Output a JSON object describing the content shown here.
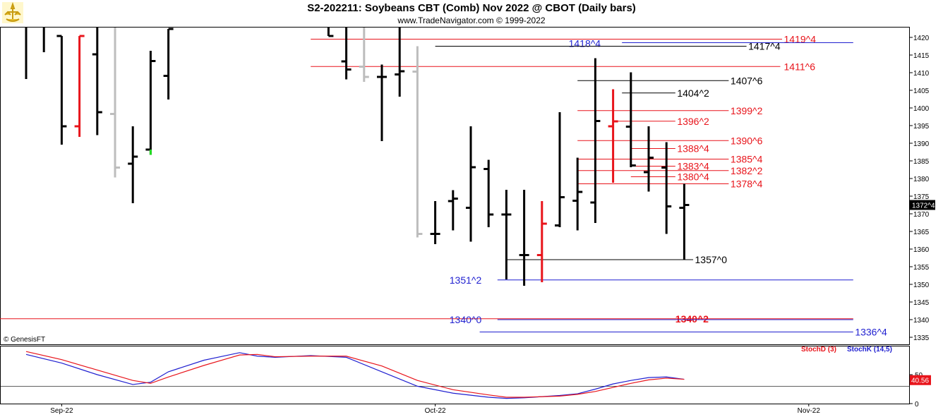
{
  "header": {
    "title": "S2-202211:  Soybeans CBT (Comb) Nov 2022 @ CBOT  (Daily bars)",
    "subtitle": "www.TradeNavigator.com © 1999-2022"
  },
  "copyright": "© GenesisFT",
  "colors": {
    "up": "#000000",
    "down_red": "#e8141b",
    "gray": "#bdbdbd",
    "blue": "#1f1fd0",
    "green": "#22dd22"
  },
  "chart_data": [
    {
      "type": "ohlc",
      "ylim": [
        1333,
        1423
      ],
      "yticks": [
        1335,
        1340,
        1345,
        1350,
        1355,
        1360,
        1365,
        1370,
        1375,
        1380,
        1385,
        1390,
        1395,
        1400,
        1405,
        1410,
        1415,
        1420
      ],
      "x_labels": [
        {
          "label": "Sep-22",
          "x": 2
        },
        {
          "label": "Oct-22",
          "x": 23
        },
        {
          "label": "Nov-22",
          "x": 44
        }
      ],
      "last_price": "1372^4",
      "bars": [
        {
          "x": 0,
          "o": 1423,
          "h": 1423,
          "l": 1408.2,
          "c": 1423,
          "color": "black"
        },
        {
          "x": 1,
          "o": 1423,
          "h": 1423,
          "l": 1415.8,
          "c": 1423,
          "color": "black"
        },
        {
          "x": 2,
          "o": 1420.4,
          "h": 1420.4,
          "l": 1389.6,
          "c": 1394.8,
          "color": "black"
        },
        {
          "x": 3,
          "o": 1394.8,
          "h": 1420.4,
          "l": 1391.8,
          "c": 1420.4,
          "color": "red"
        },
        {
          "x": 4,
          "o": 1415.2,
          "h": 1423,
          "l": 1392.3,
          "c": 1398.8,
          "color": "black"
        },
        {
          "x": 5,
          "o": 1398.3,
          "h": 1423,
          "l": 1380.3,
          "c": 1383.1,
          "color": "gray"
        },
        {
          "x": 6,
          "o": 1384.2,
          "h": 1394.8,
          "l": 1373,
          "c": 1386.2,
          "color": "black"
        },
        {
          "x": 7,
          "o": 1388.2,
          "h": 1416.2,
          "l": 1386.7,
          "c": 1413.3,
          "color": "black"
        },
        {
          "x": 8,
          "o": 1409.1,
          "h": 1422.4,
          "l": 1402.4,
          "c": 1422.4,
          "color": "black"
        },
        {
          "x": 17,
          "o": 1423,
          "h": 1423,
          "l": 1420.4,
          "c": 1420.4,
          "color": "black"
        },
        {
          "x": 18,
          "o": 1413.2,
          "h": 1423,
          "l": 1408.1,
          "c": 1410.9,
          "color": "black"
        },
        {
          "x": 19,
          "o": 1411.7,
          "h": 1423,
          "l": 1407.4,
          "c": 1408.8,
          "color": "gray"
        },
        {
          "x": 20,
          "o": 1408.8,
          "h": 1412.3,
          "l": 1390.6,
          "c": 1408.8,
          "color": "black"
        },
        {
          "x": 21,
          "o": 1409.5,
          "h": 1423,
          "l": 1403.2,
          "c": 1410.4,
          "color": "black"
        },
        {
          "x": 22,
          "o": 1410.3,
          "h": 1417.5,
          "l": 1363.3,
          "c": 1364.3,
          "color": "gray"
        },
        {
          "x": 23,
          "o": 1364.3,
          "h": 1373.6,
          "l": 1361.4,
          "c": 1364.3,
          "color": "black"
        },
        {
          "x": 24,
          "o": 1373.6,
          "h": 1376.7,
          "l": 1365.3,
          "c": 1374.3,
          "color": "black"
        },
        {
          "x": 25,
          "o": 1371.7,
          "h": 1394.8,
          "l": 1362.1,
          "c": 1383.2,
          "color": "black"
        },
        {
          "x": 26,
          "o": 1382.7,
          "h": 1385.3,
          "l": 1366.2,
          "c": 1369.8,
          "color": "black"
        },
        {
          "x": 27,
          "o": 1369.8,
          "h": 1376.8,
          "l": 1351.4,
          "c": 1369.8,
          "color": "black"
        },
        {
          "x": 28,
          "o": 1358.3,
          "h": 1376.8,
          "l": 1349.6,
          "c": 1358.3,
          "color": "black"
        },
        {
          "x": 29,
          "o": 1358.3,
          "h": 1373.6,
          "l": 1350.6,
          "c": 1367.2,
          "color": "red"
        },
        {
          "x": 30,
          "o": 1366.7,
          "h": 1398.8,
          "l": 1366.2,
          "c": 1374.7,
          "color": "black"
        },
        {
          "x": 31,
          "o": 1373.7,
          "h": 1385.9,
          "l": 1365.3,
          "c": 1376.2,
          "color": "black"
        },
        {
          "x": 32,
          "o": 1373.2,
          "h": 1414.1,
          "l": 1367.4,
          "c": 1396.3,
          "color": "black"
        },
        {
          "x": 33,
          "o": 1394.8,
          "h": 1405.3,
          "l": 1378.8,
          "c": 1396.2,
          "color": "red"
        },
        {
          "x": 34,
          "o": 1394.7,
          "h": 1410.1,
          "l": 1383.2,
          "c": 1383.7,
          "color": "black"
        },
        {
          "x": 35,
          "o": 1381.8,
          "h": 1394.8,
          "l": 1376.3,
          "c": 1385.9,
          "color": "black"
        },
        {
          "x": 36,
          "o": 1383.1,
          "h": 1390.3,
          "l": 1364.3,
          "c": 1372.1,
          "color": "black"
        },
        {
          "x": 37,
          "o": 1371.7,
          "h": 1378.5,
          "l": 1357.1,
          "c": 1372.5,
          "color": "black"
        }
      ],
      "levels": [
        {
          "label": "1419^4",
          "price": 1419.5,
          "x_from": 16,
          "x_to": 42.5,
          "color": "red",
          "label_x": 42.6,
          "label_dy": 0
        },
        {
          "label": "1418^4",
          "price": 1418.5,
          "x_from": 33.5,
          "x_to": 46.5,
          "color": "blue",
          "label_x": 30.5,
          "label_dy": 1
        },
        {
          "label": "1417^4",
          "price": 1417.5,
          "x_from": 23,
          "x_to": 40.5,
          "color": "black",
          "label_x": 40.6,
          "label_dy": 0
        },
        {
          "label": "1411^6",
          "price": 1411.75,
          "x_from": 16,
          "x_to": 42.4,
          "color": "red",
          "label_x": 42.6,
          "label_dy": 0
        },
        {
          "label": "1407^6",
          "price": 1407.75,
          "x_from": 31,
          "x_to": 39.5,
          "color": "black",
          "label_x": 39.6,
          "label_dy": 0
        },
        {
          "label": "1404^2",
          "price": 1404.25,
          "x_from": 33.5,
          "x_to": 36.5,
          "color": "black",
          "label_x": 36.6,
          "label_dy": 0
        },
        {
          "label": "1399^2",
          "price": 1399.25,
          "x_from": 31,
          "x_to": 39.5,
          "color": "red",
          "label_x": 39.6,
          "label_dy": 0
        },
        {
          "label": "1396^2",
          "price": 1396.25,
          "x_from": 33,
          "x_to": 36.5,
          "color": "red",
          "label_x": 36.6,
          "label_dy": 0
        },
        {
          "label": "1390^6",
          "price": 1390.75,
          "x_from": 31,
          "x_to": 39.5,
          "color": "red",
          "label_x": 39.6,
          "label_dy": 0
        },
        {
          "label": "1388^4",
          "price": 1388.5,
          "x_from": 34,
          "x_to": 36.5,
          "color": "red",
          "label_x": 36.6,
          "label_dy": 0
        },
        {
          "label": "1385^4",
          "price": 1385.5,
          "x_from": 31,
          "x_to": 39.5,
          "color": "red",
          "label_x": 39.6,
          "label_dy": 0
        },
        {
          "label": "1383^4",
          "price": 1383.5,
          "x_from": 34,
          "x_to": 36.5,
          "color": "red",
          "label_x": 36.6,
          "label_dy": 0
        },
        {
          "label": "1382^2",
          "price": 1382.25,
          "x_from": 31,
          "x_to": 39.5,
          "color": "red",
          "label_x": 39.6,
          "label_dy": 0
        },
        {
          "label": "1380^4",
          "price": 1380.5,
          "x_from": 34,
          "x_to": 36.5,
          "color": "red",
          "label_x": 36.6,
          "label_dy": 0
        },
        {
          "label": "1378^4",
          "price": 1378.5,
          "x_from": 31,
          "x_to": 39.5,
          "color": "red",
          "label_x": 39.6,
          "label_dy": 0
        },
        {
          "label": "1357^0",
          "price": 1357.0,
          "x_from": 27,
          "x_to": 37.5,
          "color": "black",
          "label_x": 37.6,
          "label_dy": 0
        },
        {
          "label": "1351^2",
          "price": 1351.25,
          "x_from": 26.5,
          "x_to": 46.5,
          "color": "blue",
          "label_x": 23.8,
          "label_dy": 0
        },
        {
          "label": "1340^2",
          "price": 1340.25,
          "x_from": -1.5,
          "x_to": 46.5,
          "color": "red",
          "label_x": 36.5,
          "label_dy": 0,
          "bold": true
        },
        {
          "label": "1340^0",
          "price": 1340.0,
          "x_from": 26.5,
          "x_to": 46.5,
          "color": "blue",
          "label_x": 23.8,
          "label_dy": 0
        },
        {
          "label": "1336^4",
          "price": 1336.5,
          "x_from": 25.5,
          "x_to": 46.5,
          "color": "blue",
          "label_x": 46.6,
          "label_dy": 0
        }
      ]
    },
    {
      "type": "line",
      "ylim": [
        0,
        100
      ],
      "yticks": [
        0,
        50
      ],
      "ref_line": 30,
      "legend": [
        {
          "name": "StochD (3)",
          "color": "red"
        },
        {
          "name": "StochK (14,5)",
          "color": "blue"
        }
      ],
      "last_value": "40.56",
      "series": [
        {
          "name": "StochK (14,5)",
          "color": "blue",
          "x": [
            0,
            2,
            4,
            6,
            7,
            8,
            10,
            12,
            13,
            14,
            16,
            18,
            20,
            22,
            24,
            26,
            27,
            28,
            30,
            31,
            32,
            33,
            34,
            35,
            36,
            37
          ],
          "values": [
            85,
            70,
            50,
            33,
            37,
            55,
            75,
            88,
            82,
            80,
            83,
            80,
            55,
            30,
            18,
            11,
            9,
            10,
            14,
            17,
            25,
            34,
            40,
            45,
            46,
            42
          ]
        },
        {
          "name": "StochD (3)",
          "color": "red",
          "x": [
            0,
            2,
            4,
            6,
            7,
            8,
            10,
            12,
            13,
            14,
            16,
            18,
            20,
            22,
            24,
            26,
            27,
            28,
            30,
            31,
            32,
            33,
            34,
            35,
            36,
            37
          ],
          "values": [
            90,
            76,
            58,
            40,
            35,
            46,
            66,
            84,
            85,
            81,
            82,
            82,
            65,
            40,
            24,
            15,
            11,
            11,
            13,
            16,
            21,
            28,
            35,
            41,
            44,
            42
          ]
        }
      ]
    }
  ]
}
